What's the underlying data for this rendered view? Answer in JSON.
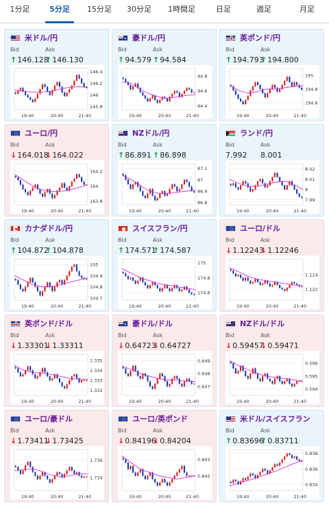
{
  "tabs": [
    {
      "label": "1分足",
      "active": false
    },
    {
      "label": "5分足",
      "active": true
    },
    {
      "label": "15分足",
      "active": false
    },
    {
      "label": "30分足",
      "active": false
    },
    {
      "label": "1時間足",
      "active": false
    },
    {
      "label": "日足",
      "active": false
    },
    {
      "label": "週足",
      "active": false
    },
    {
      "label": "月足",
      "active": false
    }
  ],
  "labels": {
    "bid": "Bid",
    "ask": "Ask"
  },
  "colors": {
    "up_card_bg": "#e9f4fb",
    "down_card_bg": "#fbeaea",
    "bull_candle": "#d81e1e",
    "bear_candle": "#1b3aa8",
    "moving_average": "#d42bd4",
    "accent": "#1b5fae",
    "pair_name": "#6a1b9a"
  },
  "x_ticks": [
    "19:40",
    "20:40",
    "21:40"
  ],
  "pairs": [
    {
      "name": "米ドル/円",
      "flag": "us-flag",
      "dir": "up",
      "bid": "146.128",
      "ask": "146.130",
      "y_ticks": [
        "146.4",
        "146.2",
        "146",
        "145.8"
      ],
      "y_range": [
        145.75,
        146.45
      ],
      "closes": [
        146.02,
        146.08,
        146.12,
        146.06,
        146.0,
        145.96,
        145.92,
        145.88,
        145.94,
        146.02,
        146.1,
        146.18,
        146.14,
        146.06,
        146.0,
        146.08,
        146.16,
        146.22,
        146.14,
        146.04,
        145.98,
        146.04,
        146.1,
        146.16,
        146.24,
        146.34,
        146.28,
        146.2,
        146.14,
        146.12
      ],
      "ma": [
        146.08,
        146.06,
        146.05,
        146.05,
        146.06,
        146.1,
        146.13,
        146.14,
        146.13
      ]
    },
    {
      "name": "豪ドル/円",
      "flag": "au-flag",
      "dir": "up",
      "bid": "94.579",
      "ask": "94.584",
      "y_ticks": [
        "94.8",
        "94.6",
        "94.4"
      ],
      "y_range": [
        94.35,
        94.9
      ],
      "closes": [
        94.76,
        94.72,
        94.68,
        94.62,
        94.66,
        94.7,
        94.64,
        94.58,
        94.54,
        94.5,
        94.46,
        94.5,
        94.54,
        94.48,
        94.44,
        94.48,
        94.52,
        94.5,
        94.46,
        94.52,
        94.56,
        94.6,
        94.58,
        94.52,
        94.56,
        94.6,
        94.64,
        94.62,
        94.58,
        94.58
      ],
      "ma": [
        94.72,
        94.7,
        94.62,
        94.56,
        94.52,
        94.5,
        94.52,
        94.54,
        94.55
      ]
    },
    {
      "name": "英ポンド/円",
      "flag": "gb-flag",
      "dir": "up",
      "bid": "194.793",
      "ask": "194.800",
      "y_ticks": [
        "195",
        "194.8",
        "194.6"
      ],
      "y_range": [
        194.5,
        195.1
      ],
      "closes": [
        194.84,
        194.78,
        194.72,
        194.66,
        194.62,
        194.58,
        194.64,
        194.7,
        194.78,
        194.84,
        194.9,
        194.86,
        194.8,
        194.74,
        194.68,
        194.74,
        194.8,
        194.86,
        194.82,
        194.76,
        194.8,
        194.86,
        194.92,
        194.98,
        194.9,
        194.84,
        194.9,
        194.86,
        194.82,
        194.79
      ],
      "ma": [
        194.86,
        194.78,
        194.74,
        194.76,
        194.8,
        194.8,
        194.82,
        194.84,
        194.85
      ]
    },
    {
      "name": "ユーロ/円",
      "flag": "eu-flag",
      "dir": "down",
      "bid": "164.018",
      "ask": "164.022",
      "y_ticks": [
        "164.2",
        "164",
        "163.8"
      ],
      "y_range": [
        163.75,
        164.3
      ],
      "closes": [
        164.12,
        164.08,
        164.02,
        163.96,
        163.92,
        163.88,
        163.94,
        163.98,
        164.02,
        163.96,
        163.9,
        163.86,
        163.92,
        163.96,
        163.9,
        163.84,
        163.88,
        163.94,
        163.98,
        164.04,
        163.98,
        163.94,
        164.0,
        164.06,
        164.1,
        164.16,
        164.12,
        164.06,
        164.02,
        164.02
      ],
      "ma": [
        164.16,
        164.08,
        164.0,
        163.95,
        163.93,
        163.93,
        163.95,
        163.98,
        164.02
      ]
    },
    {
      "name": "NZドル/円",
      "flag": "nz-flag",
      "dir": "up",
      "bid": "86.891",
      "ask": "86.898",
      "y_ticks": [
        "87.1",
        "87",
        "86.9",
        "86.8"
      ],
      "y_range": [
        86.78,
        87.14
      ],
      "closes": [
        87.04,
        87.0,
        86.96,
        86.92,
        86.96,
        86.98,
        86.94,
        86.9,
        86.86,
        86.84,
        86.88,
        86.92,
        86.86,
        86.82,
        86.84,
        86.88,
        86.9,
        86.86,
        86.88,
        86.92,
        86.96,
        86.94,
        86.9,
        86.92,
        86.96,
        87.0,
        86.98,
        86.94,
        86.9,
        86.89
      ],
      "ma": [
        87.04,
        87.0,
        86.95,
        86.9,
        86.88,
        86.88,
        86.89,
        86.9,
        86.91
      ]
    },
    {
      "name": "ランド/円",
      "flag": "za-flag",
      "dir": "none",
      "bid": "7.992",
      "ask": "8.001",
      "y_ticks": [
        "8.02",
        "8.01",
        "8",
        "7.99"
      ],
      "y_range": [
        7.985,
        8.025
      ],
      "closes": [
        8.004,
        8.006,
        8.002,
        8.0,
        8.004,
        8.008,
        8.006,
        8.002,
        7.998,
        8.0,
        8.004,
        8.008,
        8.01,
        8.006,
        8.002,
        8.004,
        8.008,
        8.012,
        8.016,
        8.012,
        8.008,
        8.004,
        8.0,
        8.004,
        8.008,
        8.004,
        8.0,
        7.996,
        7.993,
        7.992
      ],
      "ma": [
        8.01,
        8.006,
        8.003,
        8.003,
        8.005,
        8.007,
        8.008,
        8.005,
        8.0
      ]
    },
    {
      "name": "カナダドル/円",
      "flag": "ca-flag",
      "dir": "up",
      "bid": "104.872",
      "ask": "104.878",
      "y_ticks": [
        "105",
        "104.9",
        "104.8",
        "104.7"
      ],
      "y_range": [
        104.68,
        105.05
      ],
      "closes": [
        104.86,
        104.82,
        104.78,
        104.76,
        104.8,
        104.84,
        104.88,
        104.84,
        104.8,
        104.76,
        104.72,
        104.76,
        104.8,
        104.84,
        104.8,
        104.76,
        104.8,
        104.84,
        104.86,
        104.82,
        104.86,
        104.9,
        104.94,
        104.98,
        105.0,
        104.94,
        104.9,
        104.88,
        104.87,
        104.87
      ],
      "ma": [
        104.9,
        104.86,
        104.82,
        104.8,
        104.8,
        104.82,
        104.84,
        104.86,
        104.88
      ]
    },
    {
      "name": "スイスフラン/円",
      "flag": "ch-flag",
      "dir": "up",
      "bid": "174.571",
      "ask": "174.587",
      "y_ticks": [
        "175",
        "174.8",
        "174.6"
      ],
      "y_range": [
        174.5,
        175.05
      ],
      "closes": [
        174.86,
        174.82,
        174.78,
        174.8,
        174.76,
        174.72,
        174.76,
        174.8,
        174.74,
        174.7,
        174.66,
        174.7,
        174.74,
        174.7,
        174.66,
        174.62,
        174.66,
        174.7,
        174.66,
        174.62,
        174.66,
        174.7,
        174.66,
        174.62,
        174.64,
        174.68,
        174.64,
        174.6,
        174.58,
        174.57
      ],
      "ma": [
        174.92,
        174.86,
        174.8,
        174.76,
        174.72,
        174.7,
        174.68,
        174.66,
        174.64
      ]
    },
    {
      "name": "ユーロ/ドル",
      "flag": "eu-flag",
      "dir": "down",
      "bid": "1.12243",
      "ask": "1.12246",
      "y_ticks": [
        "1.124",
        "1.122"
      ],
      "y_range": [
        1.1205,
        1.1262
      ],
      "closes": [
        1.1246,
        1.1242,
        1.1238,
        1.124,
        1.1236,
        1.1232,
        1.1236,
        1.1232,
        1.1228,
        1.123,
        1.1234,
        1.123,
        1.1226,
        1.1228,
        1.1232,
        1.1228,
        1.1224,
        1.1226,
        1.123,
        1.1226,
        1.1222,
        1.122,
        1.1218,
        1.1222,
        1.1226,
        1.123,
        1.1228,
        1.1226,
        1.1224,
        1.1224
      ],
      "ma": [
        1.125,
        1.1244,
        1.1238,
        1.1234,
        1.1232,
        1.123,
        1.1228,
        1.1226,
        1.1225
      ]
    },
    {
      "name": "英ポンド/ドル",
      "flag": "gb-flag",
      "dir": "down",
      "bid": "1.33301",
      "ask": "1.33311",
      "y_ticks": [
        "1.335",
        "1.334",
        "1.333",
        "1.332"
      ],
      "y_range": [
        1.3315,
        1.3356
      ],
      "closes": [
        1.3342,
        1.3338,
        1.3334,
        1.3336,
        1.334,
        1.3344,
        1.334,
        1.3336,
        1.3332,
        1.3334,
        1.3338,
        1.3342,
        1.3338,
        1.3334,
        1.333,
        1.3332,
        1.3336,
        1.3332,
        1.3328,
        1.3324,
        1.3322,
        1.3326,
        1.333,
        1.3334,
        1.3336,
        1.3332,
        1.3328,
        1.333,
        1.333,
        1.333
      ],
      "ma": [
        1.3345,
        1.334,
        1.3338,
        1.3337,
        1.3336,
        1.3334,
        1.3332,
        1.3331,
        1.3331
      ]
    },
    {
      "name": "豪ドル/ドル",
      "flag": "au-flag",
      "dir": "down",
      "bid": "0.64723",
      "ask": "0.64727",
      "y_ticks": [
        "0.649",
        "0.648",
        "0.647"
      ],
      "y_range": [
        0.6463,
        0.6495
      ],
      "closes": [
        0.6484,
        0.648,
        0.6478,
        0.6482,
        0.6486,
        0.6482,
        0.6478,
        0.6476,
        0.648,
        0.6478,
        0.6474,
        0.647,
        0.6468,
        0.6472,
        0.6476,
        0.648,
        0.6478,
        0.6474,
        0.647,
        0.6472,
        0.6476,
        0.6478,
        0.6476,
        0.6472,
        0.647,
        0.6474,
        0.6476,
        0.6474,
        0.6472,
        0.6472
      ],
      "ma": [
        0.6486,
        0.6483,
        0.648,
        0.6478,
        0.6476,
        0.6475,
        0.6475,
        0.6474,
        0.6474
      ]
    },
    {
      "name": "NZドル/ドル",
      "flag": "nz-flag",
      "dir": "down",
      "bid": "0.59457",
      "ask": "0.59471",
      "y_ticks": [
        "0.596",
        "0.595",
        "0.594"
      ],
      "y_range": [
        0.5935,
        0.5967
      ],
      "closes": [
        0.596,
        0.5956,
        0.5952,
        0.5954,
        0.5958,
        0.5954,
        0.595,
        0.5948,
        0.5952,
        0.5956,
        0.5952,
        0.5948,
        0.5946,
        0.595,
        0.5952,
        0.5948,
        0.5946,
        0.5944,
        0.5948,
        0.595,
        0.5946,
        0.5944,
        0.5946,
        0.5948,
        0.5944,
        0.5942,
        0.5944,
        0.5946,
        0.5946,
        0.5946
      ],
      "ma": [
        0.5962,
        0.5958,
        0.5955,
        0.5952,
        0.595,
        0.5949,
        0.5948,
        0.5947,
        0.5946
      ]
    },
    {
      "name": "ユーロ/豪ドル",
      "flag": "eu-flag",
      "dir": "down",
      "bid": "1.73411",
      "ask": "1.73425",
      "y_ticks": [
        "1.736",
        "1.734"
      ],
      "y_range": [
        1.7325,
        1.7372
      ],
      "closes": [
        1.7352,
        1.7348,
        1.7344,
        1.7348,
        1.7354,
        1.7358,
        1.7352,
        1.7346,
        1.7342,
        1.7338,
        1.7342,
        1.7346,
        1.7342,
        1.7338,
        1.7334,
        1.7338,
        1.7342,
        1.7346,
        1.7344,
        1.734,
        1.7344,
        1.7348,
        1.7352,
        1.7348,
        1.7344,
        1.7346,
        1.7342,
        1.734,
        1.7341,
        1.7341
      ],
      "ma": [
        1.7348,
        1.7349,
        1.735,
        1.7347,
        1.7343,
        1.7341,
        1.7342,
        1.7344,
        1.7344
      ]
    },
    {
      "name": "ユーロ/英ポンド",
      "flag": "eu-flag",
      "dir": "down",
      "bid": "0.84196",
      "ask": "0.84204",
      "y_ticks": [
        "0.843",
        "0.842"
      ],
      "y_range": [
        0.8411,
        0.8436
      ],
      "closes": [
        0.843,
        0.8428,
        0.8424,
        0.8426,
        0.8422,
        0.842,
        0.8422,
        0.8424,
        0.842,
        0.8418,
        0.842,
        0.8422,
        0.8418,
        0.8416,
        0.8414,
        0.8416,
        0.8418,
        0.8416,
        0.8414,
        0.8416,
        0.8418,
        0.842,
        0.8422,
        0.8424,
        0.8426,
        0.8422,
        0.842,
        0.842,
        0.842,
        0.842
      ],
      "ma": [
        0.8432,
        0.8428,
        0.8424,
        0.8422,
        0.842,
        0.8419,
        0.8418,
        0.8419,
        0.842
      ]
    },
    {
      "name": "米ドル/スイスフラン",
      "flag": "us-flag",
      "dir": "up",
      "bid": "0.83696",
      "ask": "0.83711",
      "y_ticks": [
        "0.838",
        "0.836",
        "0.834"
      ],
      "y_range": [
        0.8332,
        0.8385
      ],
      "closes": [
        0.8342,
        0.8346,
        0.8344,
        0.834,
        0.8344,
        0.8348,
        0.8346,
        0.835,
        0.8354,
        0.8352,
        0.8348,
        0.8352,
        0.8356,
        0.836,
        0.8358,
        0.8354,
        0.8358,
        0.8362,
        0.8366,
        0.8364,
        0.8368,
        0.8372,
        0.8376,
        0.838,
        0.8378,
        0.8374,
        0.8376,
        0.8372,
        0.837,
        0.837
      ],
      "ma": [
        0.8338,
        0.8342,
        0.8345,
        0.8349,
        0.8353,
        0.8357,
        0.8362,
        0.8367,
        0.8371
      ]
    }
  ]
}
